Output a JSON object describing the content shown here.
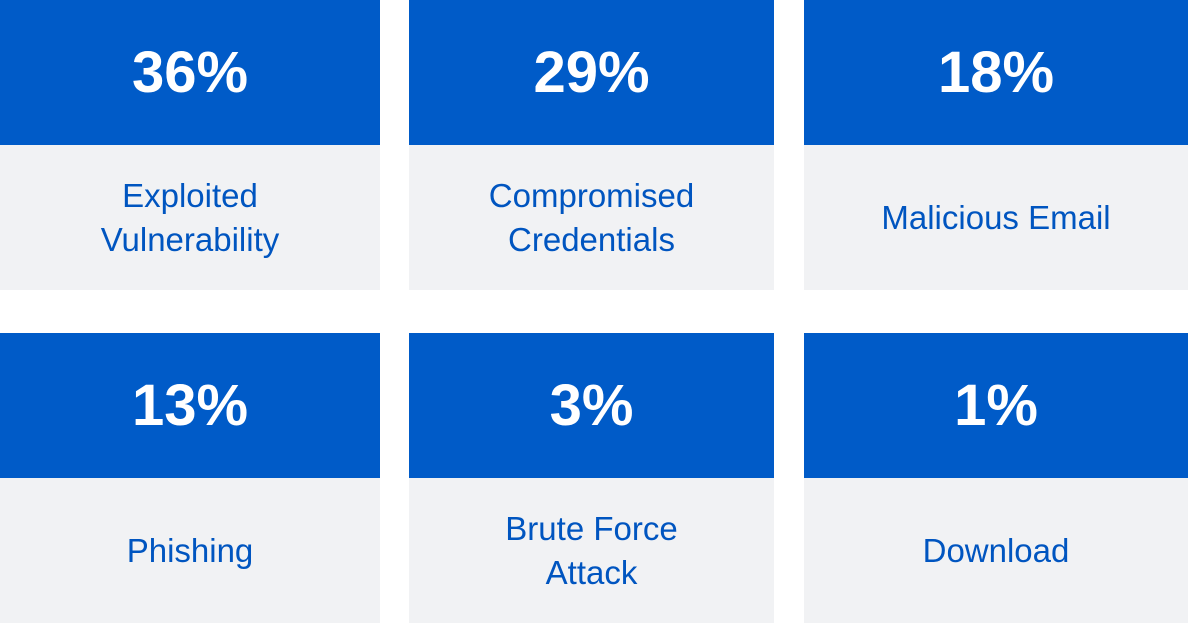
{
  "cards": [
    {
      "percent": "36%",
      "label": "Exploited Vulnerability"
    },
    {
      "percent": "29%",
      "label": "Compromised Credentials"
    },
    {
      "percent": "18%",
      "label": "Malicious Email"
    },
    {
      "percent": "13%",
      "label": "Phishing"
    },
    {
      "percent": "3%",
      "label": "Brute Force Attack"
    },
    {
      "percent": "1%",
      "label": "Download"
    }
  ],
  "colors": {
    "accent": "#005bc8",
    "panel": "#f1f2f4",
    "label_text": "#0055c0"
  }
}
